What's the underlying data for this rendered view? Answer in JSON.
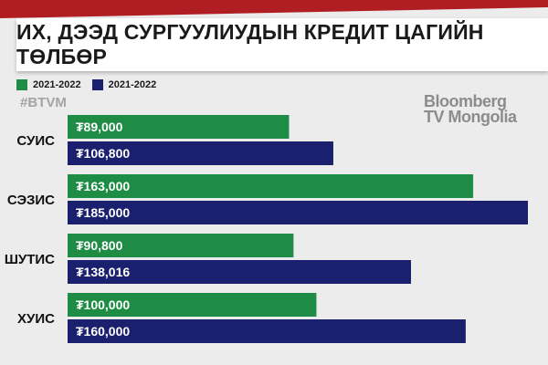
{
  "title": "ИХ, ДЭЭД СУРГУУЛИУДЫН КРЕДИТ ЦАГИЙН ТӨЛБӨР",
  "legend": [
    {
      "label": "2021-2022",
      "color": "#1e8c45"
    },
    {
      "label": "2021-2022",
      "color": "#1a1f6e"
    }
  ],
  "hashtag": "#BTVM",
  "logo": {
    "line1": "Bloomberg",
    "line2": "TV Mongolia"
  },
  "chart_data": {
    "type": "bar",
    "orientation": "horizontal",
    "categories": [
      "СУИС",
      "СЭЗИС",
      "ШУТИС",
      "ХУИС"
    ],
    "series": [
      {
        "name": "2021-2022",
        "color": "#1e8c45",
        "values": [
          89000,
          163000,
          90800,
          100000
        ],
        "labels": [
          "₮89,000",
          "₮163,000",
          "₮90,800",
          "₮100,000"
        ]
      },
      {
        "name": "2021-2022",
        "color": "#1a1f6e",
        "values": [
          106800,
          185000,
          138016,
          160000
        ],
        "labels": [
          "₮106,800",
          "₮185,000",
          "₮138,016",
          "₮160,000"
        ]
      }
    ],
    "xlim": [
      0,
      185000
    ],
    "grid": false,
    "legend_position": "top-left"
  }
}
